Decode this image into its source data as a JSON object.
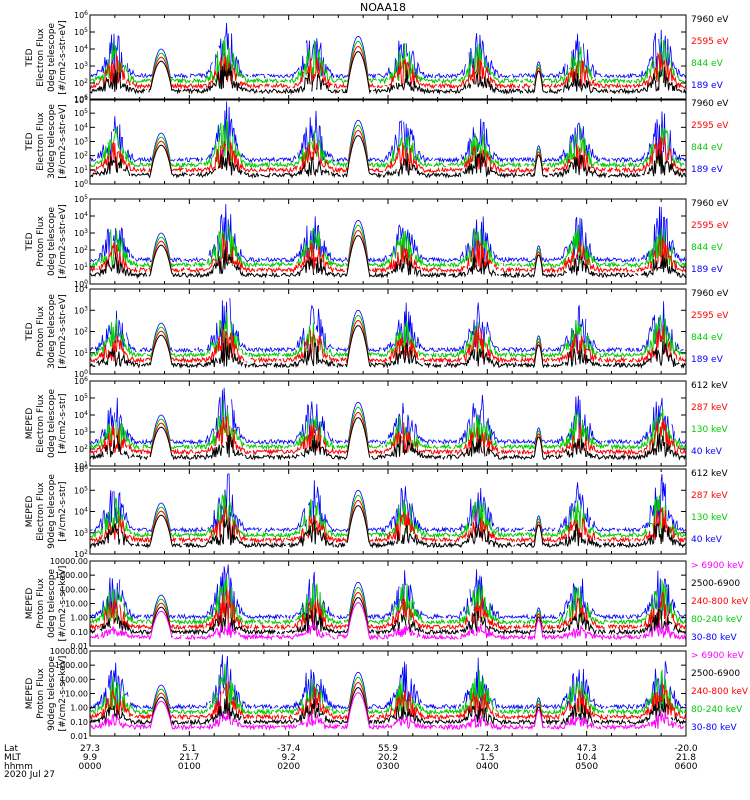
{
  "title": "NOAA18",
  "chart_data": {
    "type": "line",
    "date": "2020 Jul 27",
    "time_range_hhmm": [
      "0000",
      "0600"
    ],
    "panels": [
      {
        "ylabel": [
          "TED",
          "Electron Flux",
          "0deg telescope",
          "[#/cm2-s-str-eV]"
        ],
        "yscale": "log",
        "ytick_labels": [
          "10^1",
          "10^2",
          "10^3",
          "10^4",
          "10^5",
          "10^6"
        ],
        "ylim": [
          1,
          1000000
        ],
        "series": [
          {
            "name": "7960 eV",
            "color": "#000000"
          },
          {
            "name": "2595 eV",
            "color": "#ff0000"
          },
          {
            "name": "844 eV",
            "color": "#00cc00"
          },
          {
            "name": "189 eV",
            "color": "#0000ff"
          }
        ]
      },
      {
        "ylabel": [
          "TED",
          "Electron Flux",
          "30deg telescope",
          "[#/cm2-s-str-eV]"
        ],
        "yscale": "log",
        "ytick_labels": [
          "10^0",
          "10^1",
          "10^2",
          "10^3",
          "10^4",
          "10^5",
          "10^6"
        ],
        "ylim": [
          1,
          1000000
        ],
        "series": [
          {
            "name": "7960 eV",
            "color": "#000000"
          },
          {
            "name": "2595 eV",
            "color": "#ff0000"
          },
          {
            "name": "844 eV",
            "color": "#00cc00"
          },
          {
            "name": "189 eV",
            "color": "#0000ff"
          }
        ]
      },
      {
        "ylabel": [
          "TED",
          "Proton Flux",
          "0deg telescope",
          "[#/cm2-s-str-eV]"
        ],
        "yscale": "log",
        "ytick_labels": [
          "10^0",
          "10^1",
          "10^2",
          "10^3",
          "10^4",
          "10^5"
        ],
        "ylim": [
          1,
          100000
        ],
        "series": [
          {
            "name": "7960 eV",
            "color": "#000000"
          },
          {
            "name": "2595 eV",
            "color": "#ff0000"
          },
          {
            "name": "844 eV",
            "color": "#00cc00"
          },
          {
            "name": "189 eV",
            "color": "#0000ff"
          }
        ]
      },
      {
        "ylabel": [
          "TED",
          "Proton Flux",
          "30deg telescope",
          "[#/cm2-s-str-eV]"
        ],
        "yscale": "log",
        "ytick_labels": [
          "10^0",
          "10^1",
          "10^2",
          "10^3",
          "10^4"
        ],
        "ylim": [
          1,
          10000
        ],
        "series": [
          {
            "name": "7960 eV",
            "color": "#000000"
          },
          {
            "name": "2595 eV",
            "color": "#ff0000"
          },
          {
            "name": "844 eV",
            "color": "#00cc00"
          },
          {
            "name": "189 eV",
            "color": "#0000ff"
          }
        ]
      },
      {
        "ylabel": [
          "MEPED",
          "Electron Flux",
          "0deg telescope",
          "[#/cm2-s-str]"
        ],
        "yscale": "log",
        "ytick_labels": [
          "10^1",
          "10^2",
          "10^3",
          "10^4",
          "10^5",
          "10^6"
        ],
        "ylim": [
          10,
          1000000
        ],
        "series": [
          {
            "name": "612 keV",
            "color": "#000000"
          },
          {
            "name": "287 keV",
            "color": "#ff0000"
          },
          {
            "name": "130 keV",
            "color": "#00cc00"
          },
          {
            "name": "40 keV",
            "color": "#0000ff"
          }
        ]
      },
      {
        "ylabel": [
          "MEPED",
          "Electron Flux",
          "90deg telescope",
          "[#/cm2-s-str]"
        ],
        "yscale": "log",
        "ytick_labels": [
          "10^2",
          "10^3",
          "10^4",
          "10^5",
          "10^6"
        ],
        "ylim": [
          100,
          1000000
        ],
        "series": [
          {
            "name": "612 keV",
            "color": "#000000"
          },
          {
            "name": "287 keV",
            "color": "#ff0000"
          },
          {
            "name": "130 keV",
            "color": "#00cc00"
          },
          {
            "name": "40 keV",
            "color": "#0000ff"
          }
        ]
      },
      {
        "ylabel": [
          "MEPED",
          "Proton Flux",
          "0deg telescope",
          "[#/cm2-s-sr-keV]"
        ],
        "yscale": "log",
        "ytick_labels": [
          "0.01",
          "0.10",
          "1.00",
          "10.00",
          "100.00",
          "1000.00",
          "10000.00"
        ],
        "ylim": [
          0.01,
          10000
        ],
        "series": [
          {
            "name": "> 6900 keV",
            "color": "#ff00ff"
          },
          {
            "name": "2500-6900",
            "color": "#000000"
          },
          {
            "name": "240-800 keV",
            "color": "#ff0000"
          },
          {
            "name": "80-240 keV",
            "color": "#00cc00"
          },
          {
            "name": "30-80 keV",
            "color": "#0000ff"
          }
        ]
      },
      {
        "ylabel": [
          "MEPED",
          "Proton Flux",
          "90deg telescope",
          "[#/cm2-s-sr-keV]"
        ],
        "yscale": "log",
        "ytick_labels": [
          "0.01",
          "0.10",
          "1.00",
          "10.00",
          "100.00",
          "1000.00",
          "10000.00"
        ],
        "ylim": [
          0.01,
          10000
        ],
        "series": [
          {
            "name": "> 6900 keV",
            "color": "#ff00ff"
          },
          {
            "name": "2500-6900",
            "color": "#000000"
          },
          {
            "name": "240-800 keV",
            "color": "#ff0000"
          },
          {
            "name": "80-240 keV",
            "color": "#00cc00"
          },
          {
            "name": "30-80 keV",
            "color": "#0000ff"
          }
        ]
      }
    ],
    "passes": [
      {
        "center": "0:43",
        "width_min": 15,
        "peak": 0.6
      },
      {
        "center": "2:42",
        "width_min": 15,
        "peak": 0.75
      },
      {
        "center": "4:31",
        "width_min": 6,
        "peak": 0.45
      }
    ],
    "activity": [
      {
        "center": "0:15",
        "amp": 0.55
      },
      {
        "center": "1:22",
        "amp": 0.7
      },
      {
        "center": "2:15",
        "amp": 0.6
      },
      {
        "center": "3:10",
        "amp": 0.55
      },
      {
        "center": "3:55",
        "amp": 0.6
      },
      {
        "center": "4:55",
        "amp": 0.55
      },
      {
        "center": "5:45",
        "amp": 0.65
      }
    ],
    "x_axis": {
      "row_labels": [
        "Lat",
        "MLT",
        "hhmm"
      ],
      "ticks": [
        {
          "time": "0:00",
          "lat": "27.3",
          "mlt": "9.9",
          "hhmm": "0000"
        },
        {
          "time": "1:00",
          "lat": "5.1",
          "mlt": "21.7",
          "hhmm": "0100"
        },
        {
          "time": "2:00",
          "lat": "-37.4",
          "mlt": "9.2",
          "hhmm": "0200"
        },
        {
          "time": "3:00",
          "lat": "55.9",
          "mlt": "20.2",
          "hhmm": "0300"
        },
        {
          "time": "4:00",
          "lat": "-72.3",
          "mlt": "1.5",
          "hhmm": "0400"
        },
        {
          "time": "5:00",
          "lat": "47.3",
          "mlt": "10.4",
          "hhmm": "0500"
        },
        {
          "time": "6:00",
          "lat": "-20.0",
          "mlt": "21.8",
          "hhmm": "0600"
        }
      ]
    }
  }
}
